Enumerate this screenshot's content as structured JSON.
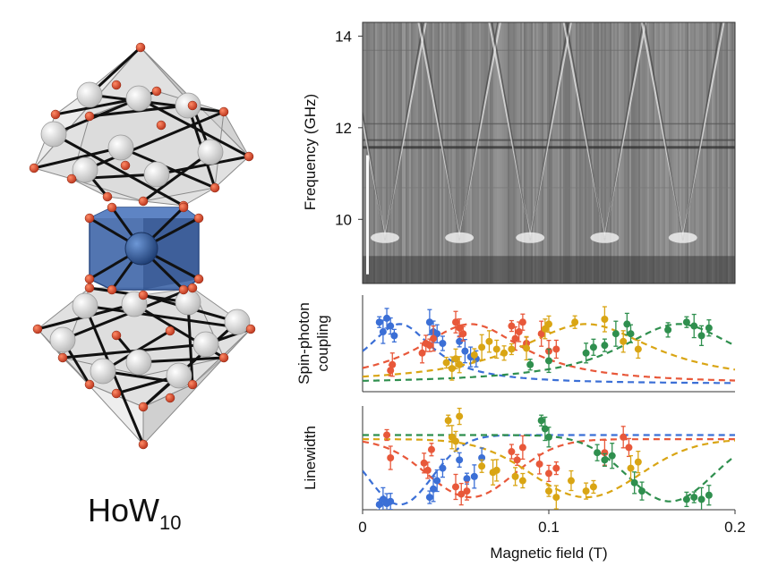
{
  "molecule": {
    "label_main": "HoW",
    "label_sub": "10",
    "colors": {
      "core": "#3f66a8",
      "core_dark": "#2a4a84",
      "oxygen": "#d24a24",
      "tungsten": "#e8e8e8",
      "polyhedron": "#c9c9c9",
      "bond": "#111111"
    }
  },
  "chart_data": [
    {
      "type": "heatmap",
      "name": "spectroscopy-map",
      "ylabel": "Frequency (GHz)",
      "yticks": [
        10,
        12,
        14
      ],
      "ylim": [
        8.6,
        14.3
      ],
      "xlim": [
        0,
        0.2
      ],
      "colormap": "grayscale",
      "transitions": [
        {
          "b_cross": 0.012,
          "f_min": 9.6
        },
        {
          "b_cross": 0.052,
          "f_min": 9.6
        },
        {
          "b_cross": 0.09,
          "f_min": 9.6
        },
        {
          "b_cross": 0.13,
          "f_min": 9.6
        },
        {
          "b_cross": 0.172,
          "f_min": 9.6
        }
      ]
    },
    {
      "type": "scatter",
      "name": "spin-photon-coupling",
      "ylabel_line1": "Spin-photon",
      "ylabel_line2": "coupling",
      "xlim": [
        0,
        0.2
      ],
      "ylim": [
        0,
        1
      ],
      "series": [
        {
          "name": "blue",
          "color": "#3b6fd6",
          "center": 0.02,
          "width": 0.022,
          "baseline": 0.08,
          "amplitude": 0.62,
          "points": [
            [
              0.009,
              0.72
            ],
            [
              0.011,
              0.62
            ],
            [
              0.013,
              0.76
            ],
            [
              0.015,
              0.68
            ],
            [
              0.017,
              0.58
            ],
            [
              0.036,
              0.72
            ],
            [
              0.038,
              0.62
            ],
            [
              0.04,
              0.6
            ],
            [
              0.043,
              0.5
            ],
            [
              0.052,
              0.52
            ],
            [
              0.055,
              0.42
            ],
            [
              0.058,
              0.36
            ],
            [
              0.061,
              0.34
            ]
          ]
        },
        {
          "name": "red",
          "color": "#e8583a",
          "center": 0.058,
          "width": 0.035,
          "baseline": 0.08,
          "amplitude": 0.62,
          "points": [
            [
              0.015,
              0.22
            ],
            [
              0.016,
              0.28
            ],
            [
              0.032,
              0.4
            ],
            [
              0.034,
              0.5
            ],
            [
              0.036,
              0.48
            ],
            [
              0.038,
              0.55
            ],
            [
              0.05,
              0.72
            ],
            [
              0.052,
              0.66
            ],
            [
              0.054,
              0.6
            ],
            [
              0.08,
              0.68
            ],
            [
              0.082,
              0.55
            ],
            [
              0.084,
              0.62
            ],
            [
              0.086,
              0.72
            ],
            [
              0.088,
              0.5
            ],
            [
              0.096,
              0.6
            ],
            [
              0.1,
              0.42
            ],
            [
              0.104,
              0.44
            ]
          ]
        },
        {
          "name": "gold",
          "color": "#d9a514",
          "center": 0.12,
          "width": 0.045,
          "baseline": 0.08,
          "amplitude": 0.62,
          "points": [
            [
              0.045,
              0.3
            ],
            [
              0.048,
              0.24
            ],
            [
              0.05,
              0.34
            ],
            [
              0.052,
              0.28
            ],
            [
              0.06,
              0.38
            ],
            [
              0.064,
              0.46
            ],
            [
              0.068,
              0.52
            ],
            [
              0.072,
              0.44
            ],
            [
              0.076,
              0.4
            ],
            [
              0.08,
              0.44
            ],
            [
              0.088,
              0.45
            ],
            [
              0.098,
              0.65
            ],
            [
              0.1,
              0.7
            ],
            [
              0.114,
              0.72
            ],
            [
              0.13,
              0.75
            ],
            [
              0.14,
              0.52
            ],
            [
              0.148,
              0.44
            ]
          ]
        },
        {
          "name": "green",
          "color": "#2f8f4e",
          "center": 0.17,
          "width": 0.04,
          "baseline": 0.08,
          "amplitude": 0.62,
          "points": [
            [
              0.09,
              0.28
            ],
            [
              0.1,
              0.32
            ],
            [
              0.12,
              0.4
            ],
            [
              0.124,
              0.46
            ],
            [
              0.13,
              0.48
            ],
            [
              0.136,
              0.6
            ],
            [
              0.142,
              0.7
            ],
            [
              0.144,
              0.6
            ],
            [
              0.164,
              0.64
            ],
            [
              0.174,
              0.72
            ],
            [
              0.178,
              0.68
            ],
            [
              0.182,
              0.58
            ],
            [
              0.186,
              0.66
            ]
          ]
        }
      ]
    },
    {
      "type": "scatter",
      "name": "linewidth",
      "ylabel": "Linewidth",
      "xlabel": "Magnetic field (T)",
      "xlim": [
        0,
        0.2
      ],
      "ylim": [
        0,
        1
      ],
      "xticks": [
        0,
        0.1,
        0.2
      ],
      "xticklabels": [
        "0",
        "0.1",
        "0.2"
      ],
      "series": [
        {
          "name": "blue",
          "color": "#3b6fd6",
          "center": 0.02,
          "width": 0.03,
          "base": 0.05,
          "top": 0.72,
          "points": [
            [
              0.009,
              0.05
            ],
            [
              0.011,
              0.1
            ],
            [
              0.013,
              0.06
            ],
            [
              0.015,
              0.08
            ],
            [
              0.036,
              0.12
            ],
            [
              0.038,
              0.2
            ],
            [
              0.04,
              0.28
            ],
            [
              0.043,
              0.4
            ],
            [
              0.052,
              0.48
            ],
            [
              0.056,
              0.3
            ],
            [
              0.06,
              0.32
            ],
            [
              0.064,
              0.5
            ]
          ]
        },
        {
          "name": "red",
          "color": "#e8583a",
          "center": 0.058,
          "width": 0.04,
          "base": 0.12,
          "top": 0.68,
          "points": [
            [
              0.013,
              0.72
            ],
            [
              0.015,
              0.5
            ],
            [
              0.033,
              0.45
            ],
            [
              0.035,
              0.38
            ],
            [
              0.037,
              0.58
            ],
            [
              0.05,
              0.22
            ],
            [
              0.053,
              0.15
            ],
            [
              0.056,
              0.18
            ],
            [
              0.08,
              0.56
            ],
            [
              0.083,
              0.48
            ],
            [
              0.086,
              0.6
            ],
            [
              0.095,
              0.44
            ],
            [
              0.1,
              0.35
            ],
            [
              0.104,
              0.4
            ],
            [
              0.13,
              0.55
            ],
            [
              0.14,
              0.7
            ],
            [
              0.143,
              0.6
            ]
          ]
        },
        {
          "name": "gold",
          "color": "#d9a514",
          "center": 0.12,
          "width": 0.05,
          "base": 0.12,
          "top": 0.68,
          "points": [
            [
              0.046,
              0.86
            ],
            [
              0.048,
              0.7
            ],
            [
              0.05,
              0.66
            ],
            [
              0.052,
              0.9
            ],
            [
              0.064,
              0.42
            ],
            [
              0.07,
              0.36
            ],
            [
              0.072,
              0.38
            ],
            [
              0.082,
              0.32
            ],
            [
              0.086,
              0.28
            ],
            [
              0.1,
              0.18
            ],
            [
              0.104,
              0.12
            ],
            [
              0.112,
              0.28
            ],
            [
              0.12,
              0.18
            ],
            [
              0.124,
              0.22
            ],
            [
              0.144,
              0.4
            ],
            [
              0.148,
              0.46
            ]
          ]
        },
        {
          "name": "green",
          "color": "#2f8f4e",
          "center": 0.165,
          "width": 0.04,
          "base": 0.08,
          "top": 0.72,
          "points": [
            [
              0.096,
              0.86
            ],
            [
              0.098,
              0.78
            ],
            [
              0.1,
              0.7
            ],
            [
              0.126,
              0.55
            ],
            [
              0.13,
              0.48
            ],
            [
              0.134,
              0.52
            ],
            [
              0.146,
              0.26
            ],
            [
              0.15,
              0.18
            ],
            [
              0.174,
              0.1
            ],
            [
              0.178,
              0.12
            ],
            [
              0.182,
              0.1
            ],
            [
              0.186,
              0.14
            ]
          ]
        }
      ]
    }
  ]
}
